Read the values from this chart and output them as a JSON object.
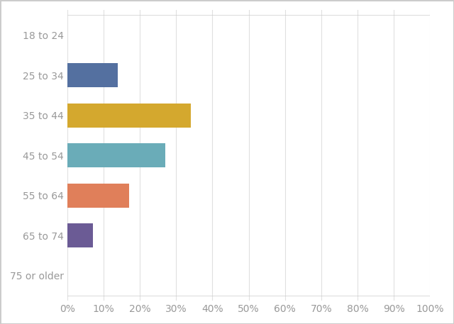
{
  "categories": [
    "18 to 24",
    "25 to 34",
    "35 to 44",
    "45 to 54",
    "55 to 64",
    "65 to 74",
    "75 or older"
  ],
  "values": [
    0,
    14,
    34,
    27,
    17,
    7,
    0
  ],
  "bar_colors": [
    "#ffffff",
    "#5470a0",
    "#d4a82e",
    "#6aacb8",
    "#e07f5a",
    "#6b5b95",
    "#ffffff"
  ],
  "xlim": [
    0,
    100
  ],
  "xtick_values": [
    0,
    10,
    20,
    30,
    40,
    50,
    60,
    70,
    80,
    90,
    100
  ],
  "background_color": "#ffffff",
  "plot_bg_color": "#ffffff",
  "label_color": "#999999",
  "grid_color": "#e0e0e0",
  "bar_height": 0.6,
  "figsize": [
    6.4,
    4.57
  ],
  "dpi": 100,
  "ylabel_fontsize": 10,
  "xlabel_fontsize": 10
}
